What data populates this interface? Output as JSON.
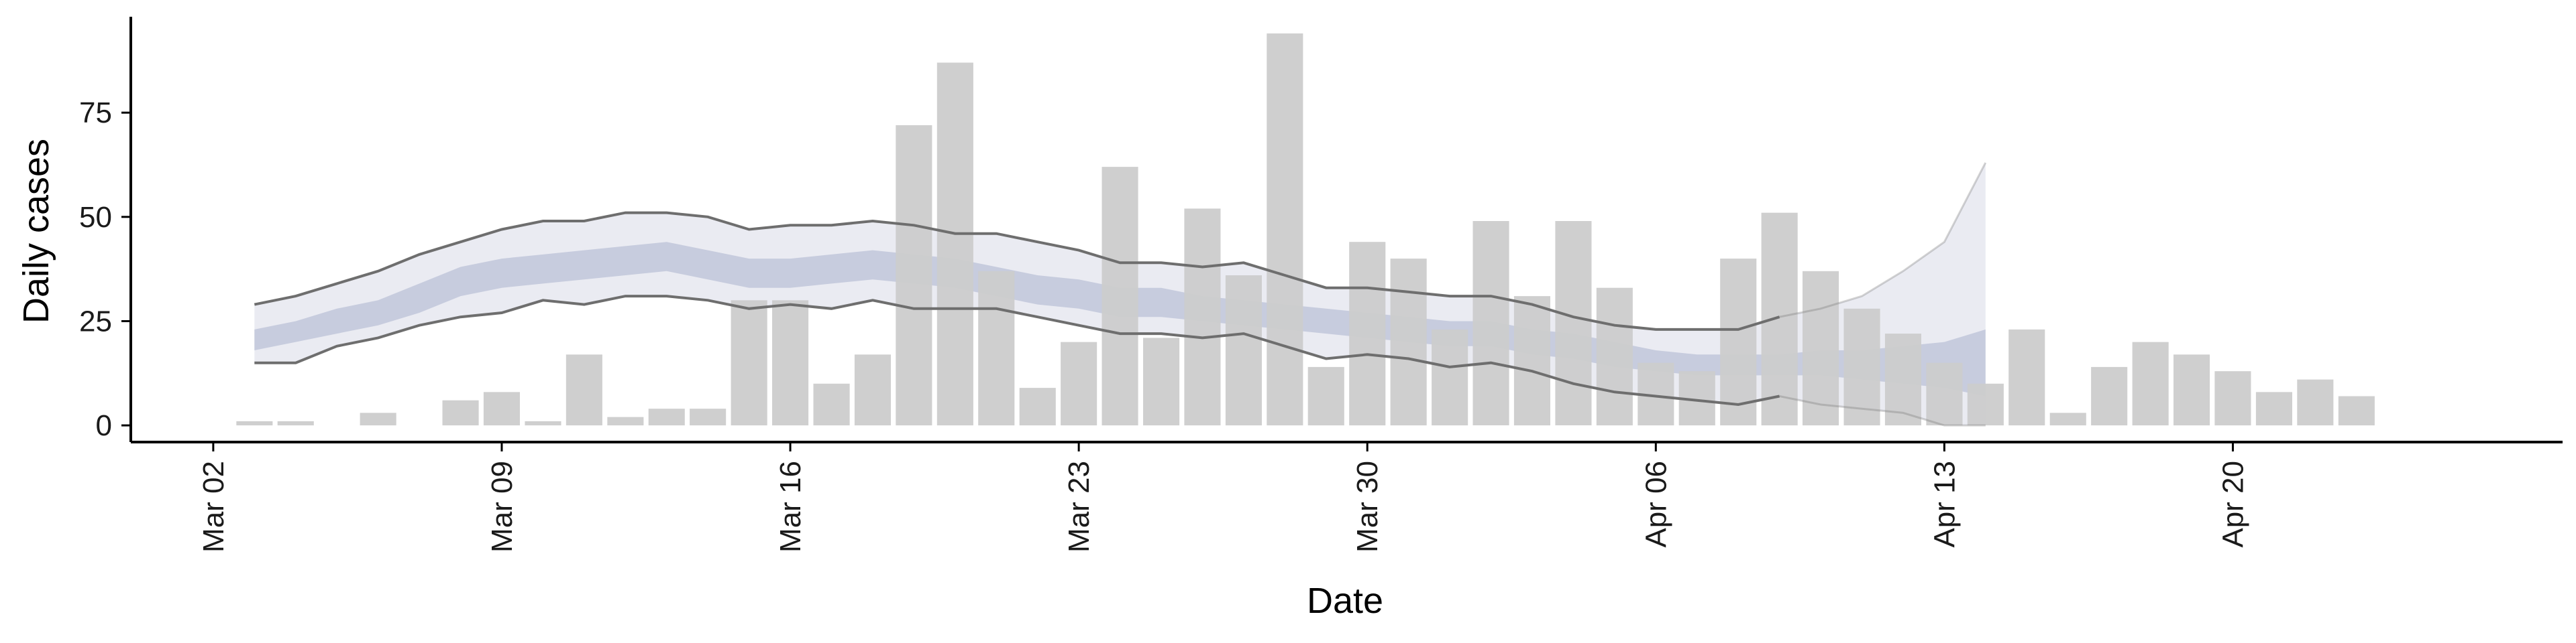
{
  "chart_data": {
    "type": "bar",
    "xlabel": "Date",
    "ylabel": "Daily cases",
    "x_axis_type": "date",
    "xlim": [
      "2020-02-29",
      "2020-04-28"
    ],
    "ylim": [
      -4,
      98
    ],
    "y_ticks": [
      0,
      25,
      50,
      75
    ],
    "x_ticks": [
      {
        "date": "2020-03-02",
        "label": "Mar 02"
      },
      {
        "date": "2020-03-09",
        "label": "Mar 09"
      },
      {
        "date": "2020-03-16",
        "label": "Mar 16"
      },
      {
        "date": "2020-03-23",
        "label": "Mar 23"
      },
      {
        "date": "2020-03-30",
        "label": "Mar 30"
      },
      {
        "date": "2020-04-06",
        "label": "Apr 06"
      },
      {
        "date": "2020-04-13",
        "label": "Apr 13"
      },
      {
        "date": "2020-04-20",
        "label": "Apr 20"
      }
    ],
    "grid": false,
    "colors": {
      "bars": "#cccccc",
      "outer_band": "#e6e8f0",
      "inner_band": "#c3c9dc",
      "band_lines": "#6e6e6e",
      "axis": "#000000"
    },
    "bars": {
      "start_date": "2020-03-03",
      "values": [
        1,
        1,
        0,
        3,
        0,
        6,
        8,
        1,
        17,
        2,
        4,
        4,
        30,
        30,
        10,
        17,
        72,
        87,
        37,
        9,
        20,
        62,
        21,
        52,
        36,
        94,
        14,
        44,
        40,
        23,
        49,
        31,
        49,
        33,
        15,
        13,
        40,
        51,
        37,
        28,
        22,
        15,
        10,
        23,
        3,
        14,
        20,
        17,
        13,
        8,
        11,
        7
      ]
    },
    "estimate": {
      "start_date": "2020-03-03",
      "upper": [
        29,
        31,
        34,
        37,
        41,
        44,
        47,
        49,
        49,
        51,
        51,
        50,
        47,
        48,
        48,
        49,
        48,
        46,
        46,
        44,
        42,
        39,
        39,
        38,
        39,
        36,
        33,
        33,
        32,
        31,
        31,
        29,
        26,
        24,
        23,
        23,
        23,
        26,
        28,
        31,
        37,
        44,
        63
      ],
      "inner_upper": [
        23,
        25,
        28,
        30,
        34,
        38,
        40,
        41,
        42,
        43,
        44,
        42,
        40,
        40,
        41,
        42,
        41,
        40,
        38,
        36,
        35,
        33,
        33,
        31,
        30,
        29,
        28,
        27,
        26,
        25,
        25,
        23,
        22,
        20,
        18,
        17,
        17,
        17,
        18,
        18,
        19,
        20,
        23
      ],
      "inner_lower": [
        18,
        20,
        22,
        24,
        27,
        31,
        33,
        34,
        35,
        36,
        37,
        35,
        33,
        33,
        34,
        35,
        34,
        33,
        31,
        29,
        28,
        26,
        26,
        25,
        24,
        23,
        22,
        21,
        20,
        19,
        19,
        17,
        16,
        14,
        13,
        12,
        12,
        12,
        12,
        11,
        10,
        9,
        7
      ],
      "lower": [
        15,
        15,
        19,
        21,
        24,
        26,
        27,
        30,
        29,
        31,
        31,
        30,
        28,
        29,
        28,
        30,
        28,
        28,
        28,
        26,
        24,
        22,
        22,
        21,
        22,
        19,
        16,
        17,
        16,
        14,
        15,
        13,
        10,
        8,
        7,
        6,
        5,
        7,
        5,
        4,
        3,
        0,
        0
      ]
    }
  }
}
